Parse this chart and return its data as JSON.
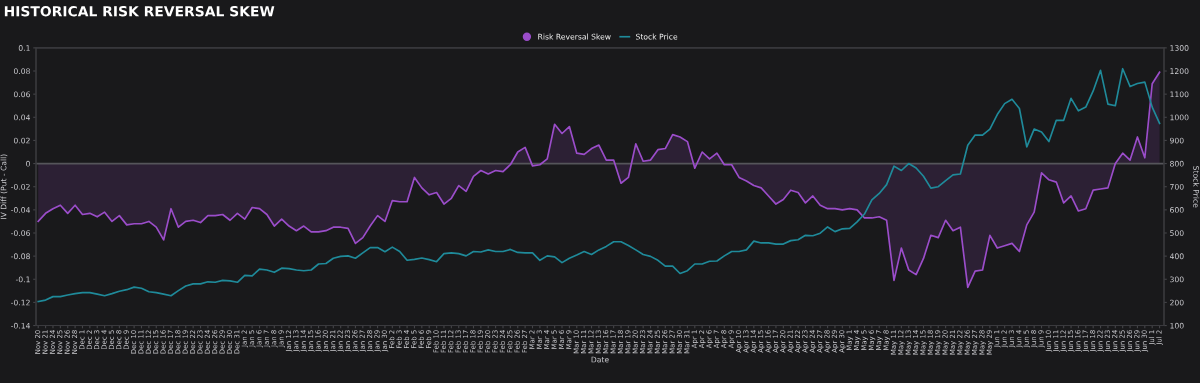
{
  "chart_data": {
    "type": "line",
    "title": "HISTORICAL RISK REVERSAL SKEW",
    "xlabel": "Date",
    "ylabel": "IV Diff (Put - Call)",
    "y2label": "Stock Price",
    "categories": [
      "Nov 20",
      "Nov 21",
      "Nov 24",
      "Nov 25",
      "Nov 26",
      "Nov 28",
      "Dec 1",
      "Dec 2",
      "Dec 3",
      "Dec 4",
      "Dec 5",
      "Dec 8",
      "Dec 9",
      "Dec 10",
      "Dec 11",
      "Dec 12",
      "Dec 15",
      "Dec 16",
      "Dec 17",
      "Dec 18",
      "Dec 19",
      "Dec 22",
      "Dec 23",
      "Dec 24",
      "Dec 26",
      "Dec 29",
      "Dec 30",
      "Dec 31",
      "Jan 2",
      "Jan 5",
      "Jan 6",
      "Jan 7",
      "Jan 8",
      "Jan 9",
      "Jan 12",
      "Jan 13",
      "Jan 14",
      "Jan 15",
      "Jan 16",
      "Jan 20",
      "Jan 21",
      "Jan 22",
      "Jan 23",
      "Jan 26",
      "Jan 27",
      "Jan 28",
      "Jan 29",
      "Jan 30",
      "Feb 2",
      "Feb 3",
      "Feb 4",
      "Feb 5",
      "Feb 6",
      "Feb 9",
      "Feb 10",
      "Feb 11",
      "Feb 12",
      "Feb 13",
      "Feb 17",
      "Feb 18",
      "Feb 19",
      "Feb 20",
      "Feb 23",
      "Feb 24",
      "Feb 25",
      "Feb 26",
      "Feb 27",
      "Mar 2",
      "Mar 3",
      "Mar 4",
      "Mar 5",
      "Mar 6",
      "Mar 9",
      "Mar 10",
      "Mar 11",
      "Mar 12",
      "Mar 13",
      "Mar 16",
      "Mar 17",
      "Mar 18",
      "Mar 19",
      "Mar 20",
      "Mar 23",
      "Mar 24",
      "Mar 25",
      "Mar 26",
      "Mar 27",
      "Mar 30",
      "Mar 31",
      "Apr 1",
      "Apr 2",
      "Apr 6",
      "Apr 7",
      "Apr 8",
      "Apr 9",
      "Apr 10",
      "Apr 13",
      "Apr 14",
      "Apr 15",
      "Apr 16",
      "Apr 17",
      "Apr 20",
      "Apr 21",
      "Apr 22",
      "Apr 23",
      "Apr 24",
      "Apr 27",
      "Apr 28",
      "Apr 29",
      "Apr 30",
      "May 1",
      "May 4",
      "May 5",
      "May 6",
      "May 7",
      "May 8",
      "May 11",
      "May 12",
      "May 13",
      "May 14",
      "May 15",
      "May 18",
      "May 19",
      "May 20",
      "May 21",
      "May 22",
      "May 26",
      "May 27",
      "May 28",
      "May 29",
      "Jun 1",
      "Jun 2",
      "Jun 3",
      "Jun 4",
      "Jun 5",
      "Jun 8",
      "Jun 9",
      "Jun 10",
      "Jun 11",
      "Jun 12",
      "Jun 15",
      "Jun 16",
      "Jun 17",
      "Jun 18",
      "Jun 22",
      "Jun 23",
      "Jun 24",
      "Jun 25",
      "Jun 26",
      "Jun 29",
      "Jun 30",
      "Jul 1",
      "Jul 2"
    ],
    "series": [
      {
        "name": "Risk Reversal Skew",
        "type": "area",
        "color": "#9b4dca",
        "values": [
          -0.05,
          -0.043,
          -0.039,
          -0.036,
          -0.043,
          -0.036,
          -0.044,
          -0.043,
          -0.046,
          -0.042,
          -0.05,
          -0.045,
          -0.053,
          -0.052,
          -0.052,
          -0.05,
          -0.055,
          -0.066,
          -0.039,
          -0.055,
          -0.05,
          -0.049,
          -0.051,
          -0.045,
          -0.045,
          -0.044,
          -0.049,
          -0.043,
          -0.048,
          -0.038,
          -0.039,
          -0.044,
          -0.054,
          -0.048,
          -0.054,
          -0.058,
          -0.054,
          -0.059,
          -0.059,
          -0.058,
          -0.055,
          -0.055,
          -0.056,
          -0.069,
          -0.064,
          -0.054,
          -0.045,
          -0.05,
          -0.032,
          -0.033,
          -0.033,
          -0.012,
          -0.021,
          -0.027,
          -0.025,
          -0.035,
          -0.03,
          -0.019,
          -0.024,
          -0.011,
          -0.006,
          -0.009,
          -0.006,
          -0.007,
          -0.001,
          0.01,
          0.014,
          -0.002,
          -0.001,
          0.004,
          0.034,
          0.026,
          0.032,
          0.009,
          0.008,
          0.013,
          0.016,
          0.003,
          0.003,
          -0.017,
          -0.012,
          0.017,
          0.002,
          0.003,
          0.012,
          0.013,
          0.025,
          0.023,
          0.019,
          -0.004,
          0.01,
          0.004,
          0.009,
          -0.001,
          -0.001,
          -0.012,
          -0.015,
          -0.019,
          -0.021,
          -0.028,
          -0.035,
          -0.031,
          -0.023,
          -0.025,
          -0.034,
          -0.028,
          -0.036,
          -0.039,
          -0.039,
          -0.04,
          -0.039,
          -0.04,
          -0.047,
          -0.047,
          -0.046,
          -0.049,
          -0.101,
          -0.073,
          -0.092,
          -0.096,
          -0.082,
          -0.062,
          -0.064,
          -0.049,
          -0.058,
          -0.055,
          -0.107,
          -0.093,
          -0.092,
          -0.062,
          -0.073,
          -0.071,
          -0.069,
          -0.076,
          -0.053,
          -0.042,
          -0.008,
          -0.014,
          -0.016,
          -0.034,
          -0.028,
          -0.041,
          -0.039,
          -0.023,
          -0.022,
          -0.021,
          0.0,
          0.009,
          0.003,
          0.023,
          0.005,
          0.069,
          0.079
        ]
      },
      {
        "name": "Stock Price",
        "axis": "y2",
        "color": "#1f8a9a",
        "values": [
          204,
          210,
          225,
          225,
          232,
          238,
          242,
          242,
          236,
          229,
          238,
          248,
          255,
          266,
          261,
          246,
          242,
          236,
          229,
          251,
          271,
          280,
          280,
          289,
          287,
          295,
          293,
          287,
          317,
          315,
          344,
          340,
          330,
          348,
          346,
          340,
          337,
          340,
          366,
          368,
          391,
          399,
          401,
          391,
          414,
          437,
          437,
          419,
          439,
          420,
          382,
          386,
          392,
          385,
          376,
          411,
          414,
          411,
          401,
          420,
          418,
          427,
          420,
          420,
          429,
          416,
          414,
          414,
          382,
          401,
          397,
          372,
          391,
          405,
          420,
          407,
          427,
          442,
          462,
          462,
          446,
          427,
          407,
          399,
          382,
          357,
          357,
          325,
          337,
          366,
          366,
          378,
          379,
          401,
          420,
          420,
          427,
          465,
          457,
          457,
          452,
          452,
          467,
          471,
          490,
          488,
          499,
          526,
          506,
          518,
          520,
          548,
          582,
          643,
          671,
          709,
          789,
          770,
          800,
          781,
          745,
          694,
          700,
          726,
          751,
          755,
          879,
          923,
          923,
          949,
          1012,
          1059,
          1078,
          1038,
          872,
          949,
          936,
          895,
          987,
          987,
          1082,
          1028,
          1044,
          1114,
          1203,
          1057,
          1050,
          1210,
          1133,
          1146,
          1152,
          1044,
          974
        ]
      }
    ],
    "ylim": [
      -0.14,
      0.1
    ],
    "yticks": [
      -0.14,
      -0.12,
      -0.1,
      -0.08,
      -0.06,
      -0.04,
      -0.02,
      0,
      0.02,
      0.04,
      0.06,
      0.08,
      0.1
    ],
    "y2lim": [
      100,
      1300
    ],
    "y2ticks": [
      100,
      200,
      300,
      400,
      500,
      600,
      700,
      800,
      900,
      1000,
      1100,
      1200,
      1300
    ],
    "ref_lines": [
      {
        "axis": "y",
        "value": 0,
        "color": "#55555a"
      }
    ],
    "grid": false,
    "legend": "top",
    "marker": "none",
    "line_style": "solid"
  }
}
